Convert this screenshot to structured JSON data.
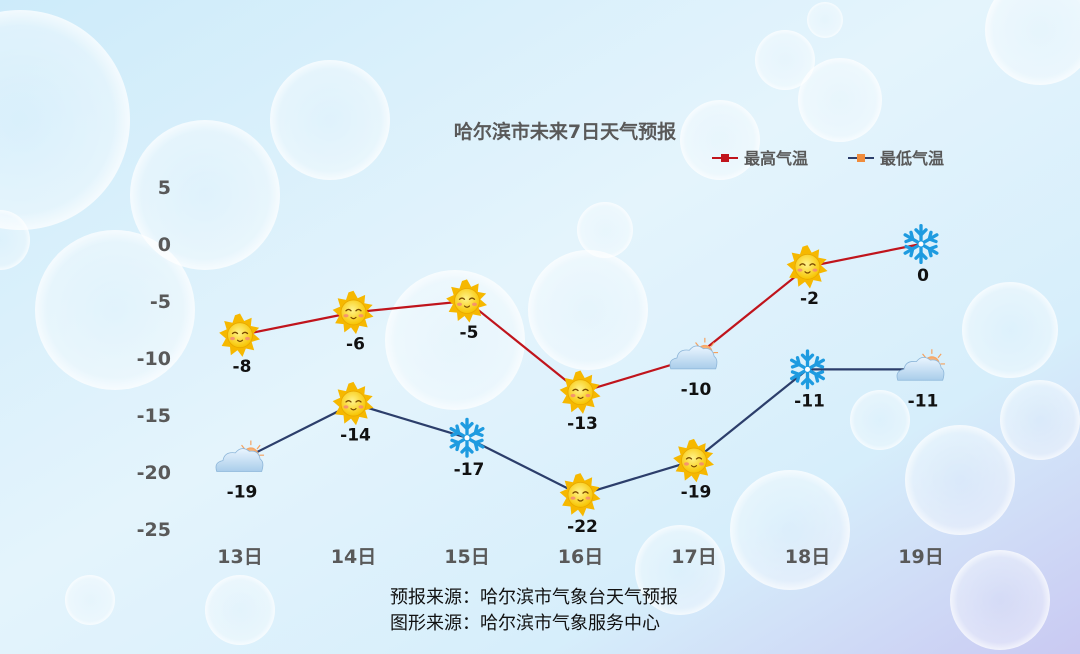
{
  "colors": {
    "high_line": "#C0141C",
    "low_line": "#2C3E6B",
    "legend_low_marker": "#F08C3C",
    "text": "#595959"
  },
  "chart_data": {
    "type": "line",
    "title": "哈尔滨市未来7日天气预报",
    "categories": [
      "13日",
      "14日",
      "15日",
      "16日",
      "17日",
      "18日",
      "19日"
    ],
    "series": [
      {
        "name": "最高气温",
        "values": [
          -8,
          -6,
          -5,
          -13,
          -10,
          -2,
          0
        ],
        "labels": [
          "-8",
          "-6",
          "-5",
          "-13",
          "-10",
          "-2",
          "0"
        ],
        "weather_icons": [
          "sun-icon",
          "sun-icon",
          "sun-icon",
          "sun-icon",
          "cloud-sun-icon",
          "sun-icon",
          "snowflake-icon"
        ]
      },
      {
        "name": "最低气温",
        "values": [
          -19,
          -14,
          -17,
          -22,
          -19,
          -11,
          -11
        ],
        "labels": [
          "-19",
          "-14",
          "-17",
          "-22",
          "-19",
          "-11",
          "-11"
        ],
        "weather_icons": [
          "cloud-sun-icon",
          "sun-icon",
          "snowflake-icon",
          "sun-icon",
          "sun-icon",
          "snowflake-icon",
          "cloud-sun-icon"
        ]
      }
    ],
    "y_ticks": [
      "5",
      "0",
      "-5",
      "-10",
      "-15",
      "-20",
      "-25"
    ],
    "ylim": [
      -25,
      5
    ],
    "legend_position": "top-right",
    "grid": false
  },
  "footer": {
    "source_forecast": "预报来源：哈尔滨市气象台天气预报",
    "source_graphic": "图形来源：哈尔滨市气象服务中心"
  }
}
